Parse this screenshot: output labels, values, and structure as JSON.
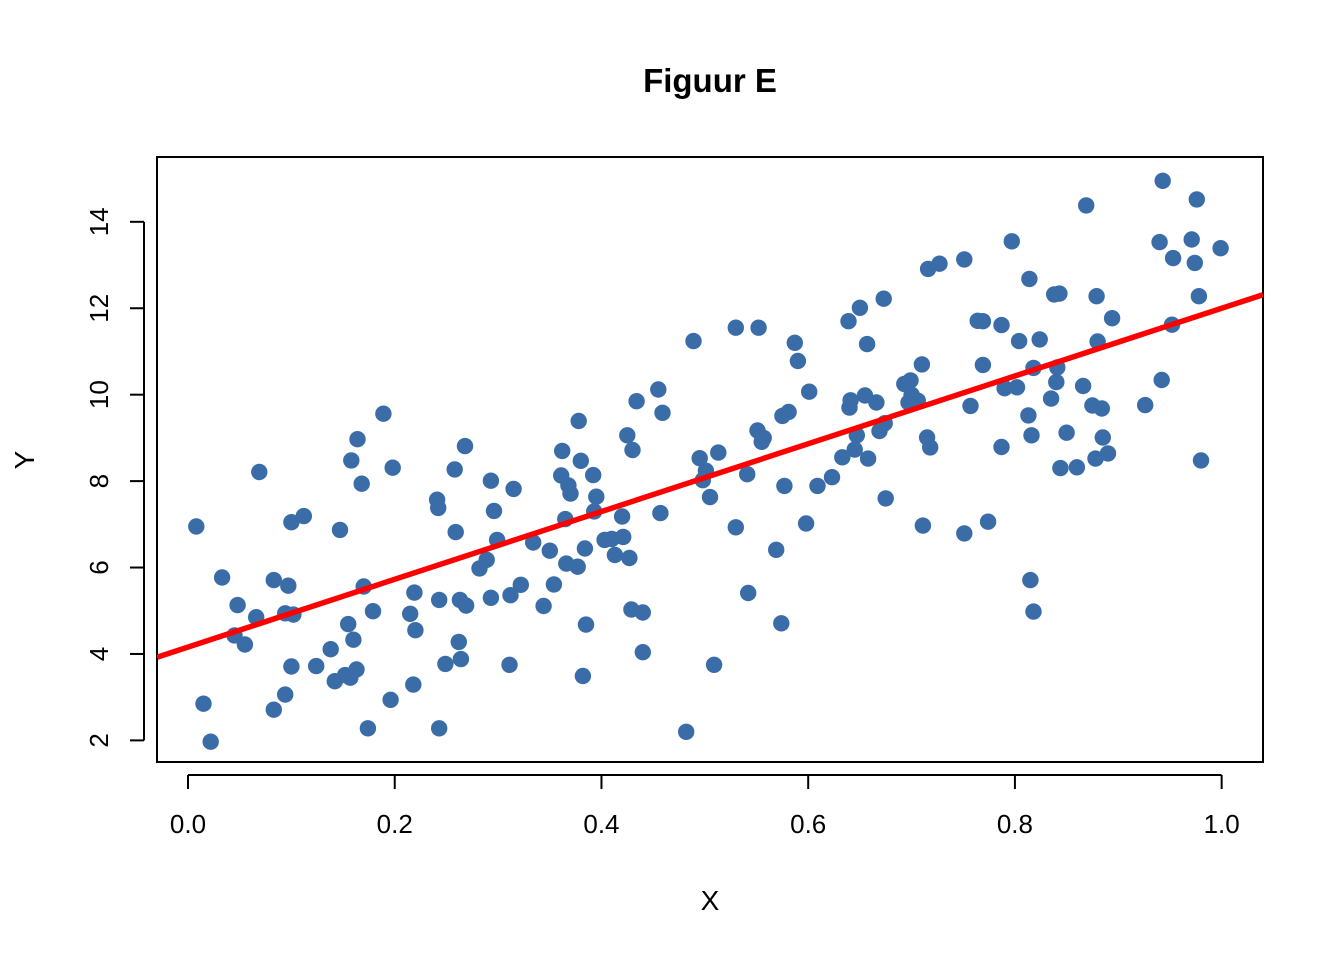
{
  "chart_data": {
    "type": "scatter",
    "title": "Figuur E",
    "xlabel": "X",
    "ylabel": "Y",
    "xlim": [
      -0.03,
      1.04
    ],
    "ylim": [
      1.5,
      15.5
    ],
    "x_ticks": [
      0.0,
      0.2,
      0.4,
      0.6,
      0.8,
      1.0
    ],
    "x_tick_labels": [
      "0.0",
      "0.2",
      "0.4",
      "0.6",
      "0.8",
      "1.0"
    ],
    "y_ticks": [
      2,
      4,
      6,
      8,
      10,
      12,
      14
    ],
    "y_tick_labels": [
      "2",
      "4",
      "6",
      "8",
      "10",
      "12",
      "14"
    ],
    "grid": false,
    "point_color": "#3A6DA8",
    "line_color": "#FF0000",
    "regression_line": {
      "intercept": 4.16,
      "slope": 7.84
    },
    "points": [
      [
        0.008,
        6.95
      ],
      [
        0.015,
        2.85
      ],
      [
        0.022,
        1.97
      ],
      [
        0.033,
        5.77
      ],
      [
        0.045,
        4.43
      ],
      [
        0.048,
        5.13
      ],
      [
        0.055,
        4.22
      ],
      [
        0.066,
        4.85
      ],
      [
        0.069,
        8.21
      ],
      [
        0.083,
        2.71
      ],
      [
        0.083,
        5.71
      ],
      [
        0.094,
        3.06
      ],
      [
        0.094,
        4.94
      ],
      [
        0.097,
        5.58
      ],
      [
        0.1,
        3.71
      ],
      [
        0.1,
        7.05
      ],
      [
        0.102,
        4.91
      ],
      [
        0.112,
        7.19
      ],
      [
        0.124,
        3.72
      ],
      [
        0.138,
        4.11
      ],
      [
        0.142,
        3.37
      ],
      [
        0.147,
        6.87
      ],
      [
        0.152,
        3.51
      ],
      [
        0.155,
        4.69
      ],
      [
        0.157,
        3.45
      ],
      [
        0.158,
        8.48
      ],
      [
        0.16,
        4.33
      ],
      [
        0.163,
        3.64
      ],
      [
        0.164,
        8.97
      ],
      [
        0.168,
        7.94
      ],
      [
        0.17,
        5.56
      ],
      [
        0.174,
        2.28
      ],
      [
        0.179,
        4.99
      ],
      [
        0.189,
        9.56
      ],
      [
        0.196,
        2.94
      ],
      [
        0.198,
        8.31
      ],
      [
        0.215,
        4.93
      ],
      [
        0.218,
        3.29
      ],
      [
        0.219,
        5.42
      ],
      [
        0.22,
        4.55
      ],
      [
        0.241,
        7.57
      ],
      [
        0.242,
        7.38
      ],
      [
        0.243,
        5.25
      ],
      [
        0.243,
        2.28
      ],
      [
        0.249,
        3.77
      ],
      [
        0.258,
        8.27
      ],
      [
        0.259,
        6.82
      ],
      [
        0.262,
        4.28
      ],
      [
        0.263,
        5.25
      ],
      [
        0.264,
        3.88
      ],
      [
        0.268,
        8.81
      ],
      [
        0.269,
        5.12
      ],
      [
        0.282,
        5.98
      ],
      [
        0.289,
        6.18
      ],
      [
        0.293,
        8.01
      ],
      [
        0.293,
        5.3
      ],
      [
        0.296,
        7.31
      ],
      [
        0.299,
        6.64
      ],
      [
        0.311,
        3.75
      ],
      [
        0.312,
        5.36
      ],
      [
        0.315,
        7.82
      ],
      [
        0.322,
        5.6
      ],
      [
        0.334,
        6.58
      ],
      [
        0.344,
        5.11
      ],
      [
        0.35,
        6.39
      ],
      [
        0.354,
        5.61
      ],
      [
        0.361,
        8.13
      ],
      [
        0.362,
        8.7
      ],
      [
        0.365,
        7.12
      ],
      [
        0.366,
        6.09
      ],
      [
        0.368,
        7.9
      ],
      [
        0.37,
        7.71
      ],
      [
        0.377,
        6.02
      ],
      [
        0.378,
        9.39
      ],
      [
        0.38,
        8.47
      ],
      [
        0.382,
        3.49
      ],
      [
        0.384,
        6.44
      ],
      [
        0.385,
        4.68
      ],
      [
        0.392,
        8.14
      ],
      [
        0.393,
        7.3
      ],
      [
        0.395,
        7.64
      ],
      [
        0.403,
        6.64
      ],
      [
        0.41,
        6.66
      ],
      [
        0.413,
        6.29
      ],
      [
        0.42,
        7.18
      ],
      [
        0.421,
        6.71
      ],
      [
        0.425,
        9.06
      ],
      [
        0.427,
        6.22
      ],
      [
        0.429,
        5.03
      ],
      [
        0.43,
        8.72
      ],
      [
        0.434,
        9.85
      ],
      [
        0.44,
        4.96
      ],
      [
        0.44,
        4.04
      ],
      [
        0.455,
        10.12
      ],
      [
        0.457,
        7.26
      ],
      [
        0.459,
        9.58
      ],
      [
        0.482,
        2.2
      ],
      [
        0.489,
        11.24
      ],
      [
        0.495,
        8.53
      ],
      [
        0.498,
        8.02
      ],
      [
        0.501,
        8.24
      ],
      [
        0.505,
        7.63
      ],
      [
        0.509,
        3.75
      ],
      [
        0.513,
        8.66
      ],
      [
        0.53,
        6.93
      ],
      [
        0.53,
        11.55
      ],
      [
        0.541,
        8.16
      ],
      [
        0.542,
        5.41
      ],
      [
        0.551,
        9.17
      ],
      [
        0.552,
        11.55
      ],
      [
        0.555,
        8.91
      ],
      [
        0.557,
        9.0
      ],
      [
        0.569,
        6.41
      ],
      [
        0.574,
        4.71
      ],
      [
        0.575,
        9.51
      ],
      [
        0.577,
        7.89
      ],
      [
        0.581,
        9.6
      ],
      [
        0.587,
        11.2
      ],
      [
        0.59,
        10.78
      ],
      [
        0.598,
        7.02
      ],
      [
        0.601,
        10.07
      ],
      [
        0.609,
        7.89
      ],
      [
        0.623,
        8.09
      ],
      [
        0.633,
        8.55
      ],
      [
        0.639,
        11.7
      ],
      [
        0.64,
        9.7
      ],
      [
        0.641,
        9.87
      ],
      [
        0.645,
        8.73
      ],
      [
        0.647,
        9.06
      ],
      [
        0.65,
        12.01
      ],
      [
        0.655,
        9.98
      ],
      [
        0.657,
        11.17
      ],
      [
        0.658,
        8.52
      ],
      [
        0.666,
        9.82
      ],
      [
        0.669,
        9.16
      ],
      [
        0.673,
        12.22
      ],
      [
        0.674,
        9.34
      ],
      [
        0.675,
        7.6
      ],
      [
        0.693,
        10.25
      ],
      [
        0.697,
        9.82
      ],
      [
        0.699,
        10.33
      ],
      [
        0.7,
        10.0
      ],
      [
        0.706,
        9.86
      ],
      [
        0.71,
        10.7
      ],
      [
        0.711,
        6.97
      ],
      [
        0.715,
        9.01
      ],
      [
        0.716,
        12.91
      ],
      [
        0.718,
        8.78
      ],
      [
        0.727,
        13.03
      ],
      [
        0.751,
        13.13
      ],
      [
        0.751,
        6.79
      ],
      [
        0.757,
        9.74
      ],
      [
        0.764,
        11.71
      ],
      [
        0.769,
        11.7
      ],
      [
        0.769,
        10.69
      ],
      [
        0.774,
        7.06
      ],
      [
        0.787,
        8.79
      ],
      [
        0.787,
        11.61
      ],
      [
        0.79,
        10.15
      ],
      [
        0.797,
        13.55
      ],
      [
        0.802,
        10.17
      ],
      [
        0.804,
        11.24
      ],
      [
        0.813,
        9.52
      ],
      [
        0.814,
        12.68
      ],
      [
        0.815,
        5.71
      ],
      [
        0.816,
        9.06
      ],
      [
        0.818,
        4.98
      ],
      [
        0.818,
        10.62
      ],
      [
        0.824,
        11.28
      ],
      [
        0.835,
        9.91
      ],
      [
        0.838,
        12.32
      ],
      [
        0.84,
        10.29
      ],
      [
        0.841,
        10.63
      ],
      [
        0.843,
        12.34
      ],
      [
        0.844,
        8.3
      ],
      [
        0.85,
        9.12
      ],
      [
        0.86,
        8.32
      ],
      [
        0.866,
        10.2
      ],
      [
        0.869,
        14.38
      ],
      [
        0.875,
        9.75
      ],
      [
        0.878,
        8.52
      ],
      [
        0.879,
        12.28
      ],
      [
        0.88,
        11.23
      ],
      [
        0.884,
        9.68
      ],
      [
        0.885,
        9.01
      ],
      [
        0.89,
        8.64
      ],
      [
        0.894,
        11.77
      ],
      [
        0.926,
        9.76
      ],
      [
        0.94,
        13.53
      ],
      [
        0.942,
        10.34
      ],
      [
        0.943,
        14.95
      ],
      [
        0.952,
        11.62
      ],
      [
        0.953,
        13.16
      ],
      [
        0.971,
        13.59
      ],
      [
        0.974,
        13.05
      ],
      [
        0.976,
        14.52
      ],
      [
        0.978,
        12.28
      ],
      [
        0.98,
        8.48
      ],
      [
        0.999,
        13.39
      ]
    ]
  }
}
